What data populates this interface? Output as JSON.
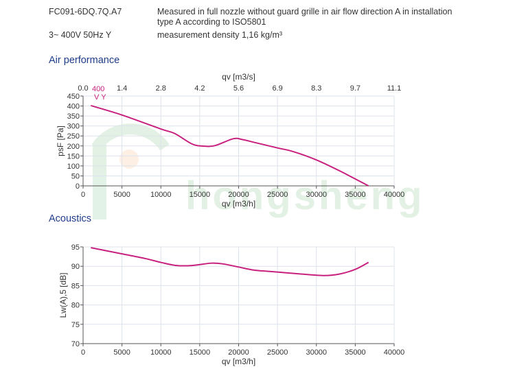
{
  "header": {
    "model": "FC091-6DQ.7Q.A7",
    "supply": "3~ 400V 50Hz Y",
    "measure_line1": "Measured in full nozzle without guard grille in air flow direction A in installation",
    "measure_line2": "type A according to ISO5801",
    "density": "measurement density 1,16 kg/m³"
  },
  "sections": {
    "air": "Air performance",
    "acoustics": "Acoustics"
  },
  "watermark": "hongsheng",
  "colors": {
    "curve": "#c8207e",
    "grid": "#dde3ec",
    "title": "#1f3c8a"
  },
  "chart_data": [
    {
      "type": "line",
      "title": "Air performance",
      "xlabel": "qv [m3/h]",
      "x2label": "qv [m3/s]",
      "ylabel": "psF [Pa]",
      "xlim": [
        0,
        40000
      ],
      "ylim": [
        0,
        450
      ],
      "xticks": [
        "0",
        "5000",
        "10000",
        "15000",
        "20000",
        "25000",
        "30000",
        "35000",
        "40000"
      ],
      "x2ticks": [
        "0.0",
        "1.4",
        "2.8",
        "4.2",
        "5.6",
        "6.9",
        "8.3",
        "9.7",
        "11.1"
      ],
      "yticks": [
        "0",
        "50",
        "100",
        "150",
        "200",
        "250",
        "300",
        "350",
        "400",
        "450"
      ],
      "grid": true,
      "curve_label": [
        "400",
        "V Y"
      ],
      "series": [
        {
          "name": "400 V Y",
          "x": [
            1000,
            5000,
            10000,
            11800,
            14000,
            15500,
            17000,
            19300,
            20500,
            22000,
            25000,
            27000,
            30000,
            33000,
            36700
          ],
          "y": [
            402,
            355,
            285,
            262,
            210,
            199,
            202,
            236,
            232,
            218,
            190,
            172,
            130,
            75,
            0
          ]
        }
      ]
    },
    {
      "type": "line",
      "title": "Acoustics",
      "xlabel": "qv [m3/h]",
      "ylabel": "Lw(A),5 [dB]",
      "xlim": [
        0,
        40000
      ],
      "ylim": [
        70,
        95
      ],
      "xticks": [
        "0",
        "5000",
        "10000",
        "15000",
        "20000",
        "25000",
        "30000",
        "35000",
        "40000"
      ],
      "yticks": [
        "70",
        "75",
        "80",
        "85",
        "90",
        "95"
      ],
      "grid": true,
      "series": [
        {
          "name": "400 V Y",
          "x": [
            1000,
            5000,
            8000,
            10000,
            12000,
            14000,
            16500,
            18000,
            20000,
            22000,
            25000,
            28000,
            31000,
            33000,
            35000,
            36700
          ],
          "y": [
            94.8,
            93.2,
            92,
            91,
            90.2,
            90.2,
            90.8,
            90.6,
            89.8,
            89,
            88.5,
            88,
            87.6,
            88,
            89.2,
            91
          ]
        }
      ]
    }
  ]
}
